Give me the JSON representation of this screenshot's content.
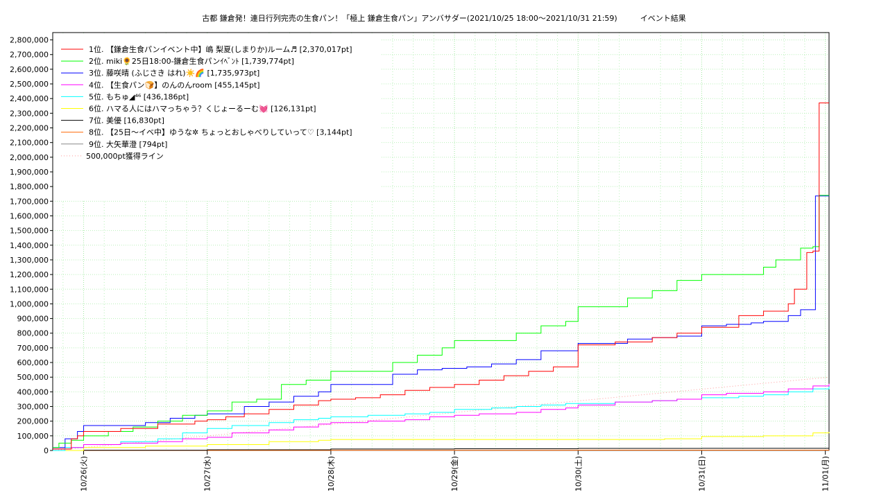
{
  "chart_data": {
    "type": "line",
    "title": "古都 鎌倉発！連日行列完売の生食パン！「極上 鎌倉生食パン」アンバサダー(2021/10/25 18:00〜2021/10/31 21:59)　　　イベント結果",
    "xlabel": "",
    "ylabel": "",
    "ylim": [
      0,
      2850000
    ],
    "xlim": [
      -0.25,
      6.03
    ],
    "y_ticks": [
      "0",
      "100,000",
      "200,000",
      "300,000",
      "400,000",
      "500,000",
      "600,000",
      "700,000",
      "800,000",
      "900,000",
      "1,000,000",
      "1,100,000",
      "1,200,000",
      "1,300,000",
      "1,400,000",
      "1,500,000",
      "1,600,000",
      "1,700,000",
      "1,800,000",
      "1,900,000",
      "2,000,000",
      "2,100,000",
      "2,200,000",
      "2,300,000",
      "2,400,000",
      "2,500,000",
      "2,600,000",
      "2,700,000",
      "2,800,000"
    ],
    "x_ticks": [
      "10/26(火)",
      "10/27(水)",
      "10/28(木)",
      "10/29(金)",
      "10/30(土)",
      "10/31(日)",
      "11/01(月)"
    ],
    "grid": true,
    "legend_position": "top-left",
    "series": [
      {
        "name": "1位. 【鎌倉生食パンイベント中】嶋 梨夏(しまりか)ルーム♬ [2,370,017pt]",
        "color": "#ff0000",
        "x": [
          -0.25,
          -0.1,
          -0.05,
          0,
          0.1,
          0.3,
          0.6,
          0.9,
          1.0,
          1.15,
          1.3,
          1.5,
          1.7,
          1.9,
          2.0,
          2.2,
          2.4,
          2.6,
          2.8,
          3.0,
          3.2,
          3.4,
          3.6,
          3.8,
          4.0,
          4.3,
          4.6,
          4.8,
          5.0,
          5.3,
          5.5,
          5.7,
          5.75,
          5.8,
          5.85,
          5.9,
          5.95,
          6.03
        ],
        "y": [
          10000,
          80000,
          100000,
          130000,
          130000,
          150000,
          180000,
          200000,
          210000,
          230000,
          250000,
          280000,
          310000,
          340000,
          350000,
          360000,
          380000,
          410000,
          430000,
          450000,
          480000,
          510000,
          540000,
          570000,
          720000,
          740000,
          770000,
          800000,
          840000,
          920000,
          950000,
          1000000,
          1100000,
          1100000,
          1350000,
          1360000,
          2370017,
          2370017
        ]
      },
      {
        "name": "2位. miki🌻25日18:00-鎌倉生食パンｲﾍﾞﾝﾄ [1,739,774pt]",
        "color": "#00ff00",
        "x": [
          -0.25,
          -0.2,
          -0.1,
          0,
          0.2,
          0.4,
          0.6,
          0.8,
          1.0,
          1.2,
          1.4,
          1.6,
          1.8,
          2.0,
          2.3,
          2.5,
          2.7,
          2.9,
          3.0,
          3.3,
          3.5,
          3.7,
          3.9,
          4.0,
          4.2,
          4.4,
          4.6,
          4.8,
          5.0,
          5.3,
          5.5,
          5.6,
          5.7,
          5.8,
          5.9,
          5.95,
          6.03
        ],
        "y": [
          20000,
          50000,
          70000,
          100000,
          130000,
          160000,
          200000,
          240000,
          270000,
          330000,
          350000,
          450000,
          480000,
          540000,
          540000,
          600000,
          650000,
          700000,
          750000,
          750000,
          800000,
          850000,
          880000,
          980000,
          980000,
          1040000,
          1090000,
          1160000,
          1200000,
          1200000,
          1250000,
          1300000,
          1300000,
          1380000,
          1390000,
          1739774,
          1739774
        ]
      },
      {
        "name": "3位. 藤咲晴 (ふじさき はれ)☀️🌈 [1,735,973pt]",
        "color": "#0000ff",
        "x": [
          -0.25,
          -0.15,
          -0.05,
          0.0,
          0.3,
          0.5,
          0.7,
          0.9,
          1.0,
          1.3,
          1.5,
          1.7,
          1.9,
          2.0,
          2.2,
          2.5,
          2.7,
          2.9,
          3.1,
          3.3,
          3.5,
          3.7,
          3.9,
          4.0,
          4.2,
          4.4,
          4.6,
          4.8,
          5.0,
          5.2,
          5.4,
          5.5,
          5.7,
          5.8,
          5.88,
          5.92,
          6.03
        ],
        "y": [
          20000,
          80000,
          130000,
          170000,
          170000,
          190000,
          220000,
          240000,
          250000,
          300000,
          330000,
          370000,
          400000,
          450000,
          450000,
          520000,
          550000,
          560000,
          570000,
          590000,
          620000,
          680000,
          680000,
          730000,
          730000,
          760000,
          770000,
          780000,
          850000,
          860000,
          870000,
          880000,
          920000,
          960000,
          960000,
          1735973,
          1735973
        ]
      },
      {
        "name": "4位. 【生食パン🍞】のんのんroom [455,145pt]",
        "color": "#ff00ff",
        "x": [
          -0.25,
          -0.1,
          0,
          0.3,
          0.6,
          0.8,
          1.0,
          1.2,
          1.5,
          1.7,
          1.9,
          2.0,
          2.3,
          2.6,
          2.8,
          3.0,
          3.2,
          3.5,
          3.7,
          3.9,
          4.0,
          4.3,
          4.6,
          4.8,
          5.0,
          5.2,
          5.5,
          5.7,
          5.9,
          6.03
        ],
        "y": [
          10000,
          20000,
          40000,
          50000,
          60000,
          80000,
          90000,
          120000,
          140000,
          160000,
          180000,
          190000,
          200000,
          210000,
          230000,
          240000,
          250000,
          260000,
          280000,
          290000,
          310000,
          330000,
          340000,
          350000,
          380000,
          390000,
          400000,
          420000,
          440000,
          455145
        ]
      },
      {
        "name": "5位. もちゅ◢⁴⁶ [436,186pt]",
        "color": "#00ffff",
        "x": [
          -0.25,
          -0.15,
          0,
          0.3,
          0.6,
          0.8,
          1.0,
          1.2,
          1.5,
          1.7,
          1.9,
          2.0,
          2.3,
          2.6,
          2.8,
          3.0,
          3.3,
          3.5,
          3.7,
          3.9,
          4.0,
          4.3,
          4.6,
          4.8,
          5.0,
          5.3,
          5.5,
          5.7,
          5.9,
          6.03
        ],
        "y": [
          0,
          20000,
          40000,
          60000,
          80000,
          120000,
          150000,
          170000,
          190000,
          210000,
          220000,
          230000,
          240000,
          250000,
          260000,
          280000,
          290000,
          300000,
          310000,
          320000,
          320000,
          330000,
          340000,
          350000,
          360000,
          370000,
          380000,
          400000,
          420000,
          436186
        ]
      },
      {
        "name": "6位. ハマる人にはハマっちゃう？くじょーるーむ💓 [126,131pt]",
        "color": "#ffff00",
        "x": [
          -0.25,
          0,
          0.5,
          1.0,
          1.5,
          1.9,
          2.0,
          2.5,
          3.0,
          3.5,
          4.0,
          4.5,
          4.7,
          5.0,
          5.5,
          5.9,
          6.03
        ],
        "y": [
          0,
          20000,
          30000,
          40000,
          60000,
          70000,
          75000,
          75000,
          75000,
          75000,
          75000,
          75000,
          80000,
          95000,
          100000,
          120000,
          126131
        ]
      },
      {
        "name": "7位. 美優 [16,830pt]",
        "color": "#000000",
        "x": [
          -0.25,
          0,
          1.0,
          2.0,
          3.0,
          4.0,
          5.0,
          6.03
        ],
        "y": [
          0,
          2000,
          5000,
          10000,
          12000,
          14000,
          15000,
          16830
        ]
      },
      {
        "name": "8位. 【25日〜イベ中】ゆうな✲ ちょっとおしゃべりしていって♡ [3,144pt]",
        "color": "#ff6600",
        "x": [
          -0.25,
          0,
          2.0,
          4.0,
          6.03
        ],
        "y": [
          0,
          500,
          1500,
          2500,
          3144
        ]
      },
      {
        "name": "9位. 大矢華澄 [794pt]",
        "color": "#888888",
        "x": [
          -0.25,
          0,
          3.0,
          6.03
        ],
        "y": [
          0,
          200,
          500,
          794
        ]
      }
    ],
    "reference_line": {
      "name": "500,000pt獲得ライン",
      "color": "#ff9999",
      "x": [
        -0.25,
        6.03
      ],
      "y": [
        0,
        500000
      ]
    }
  }
}
